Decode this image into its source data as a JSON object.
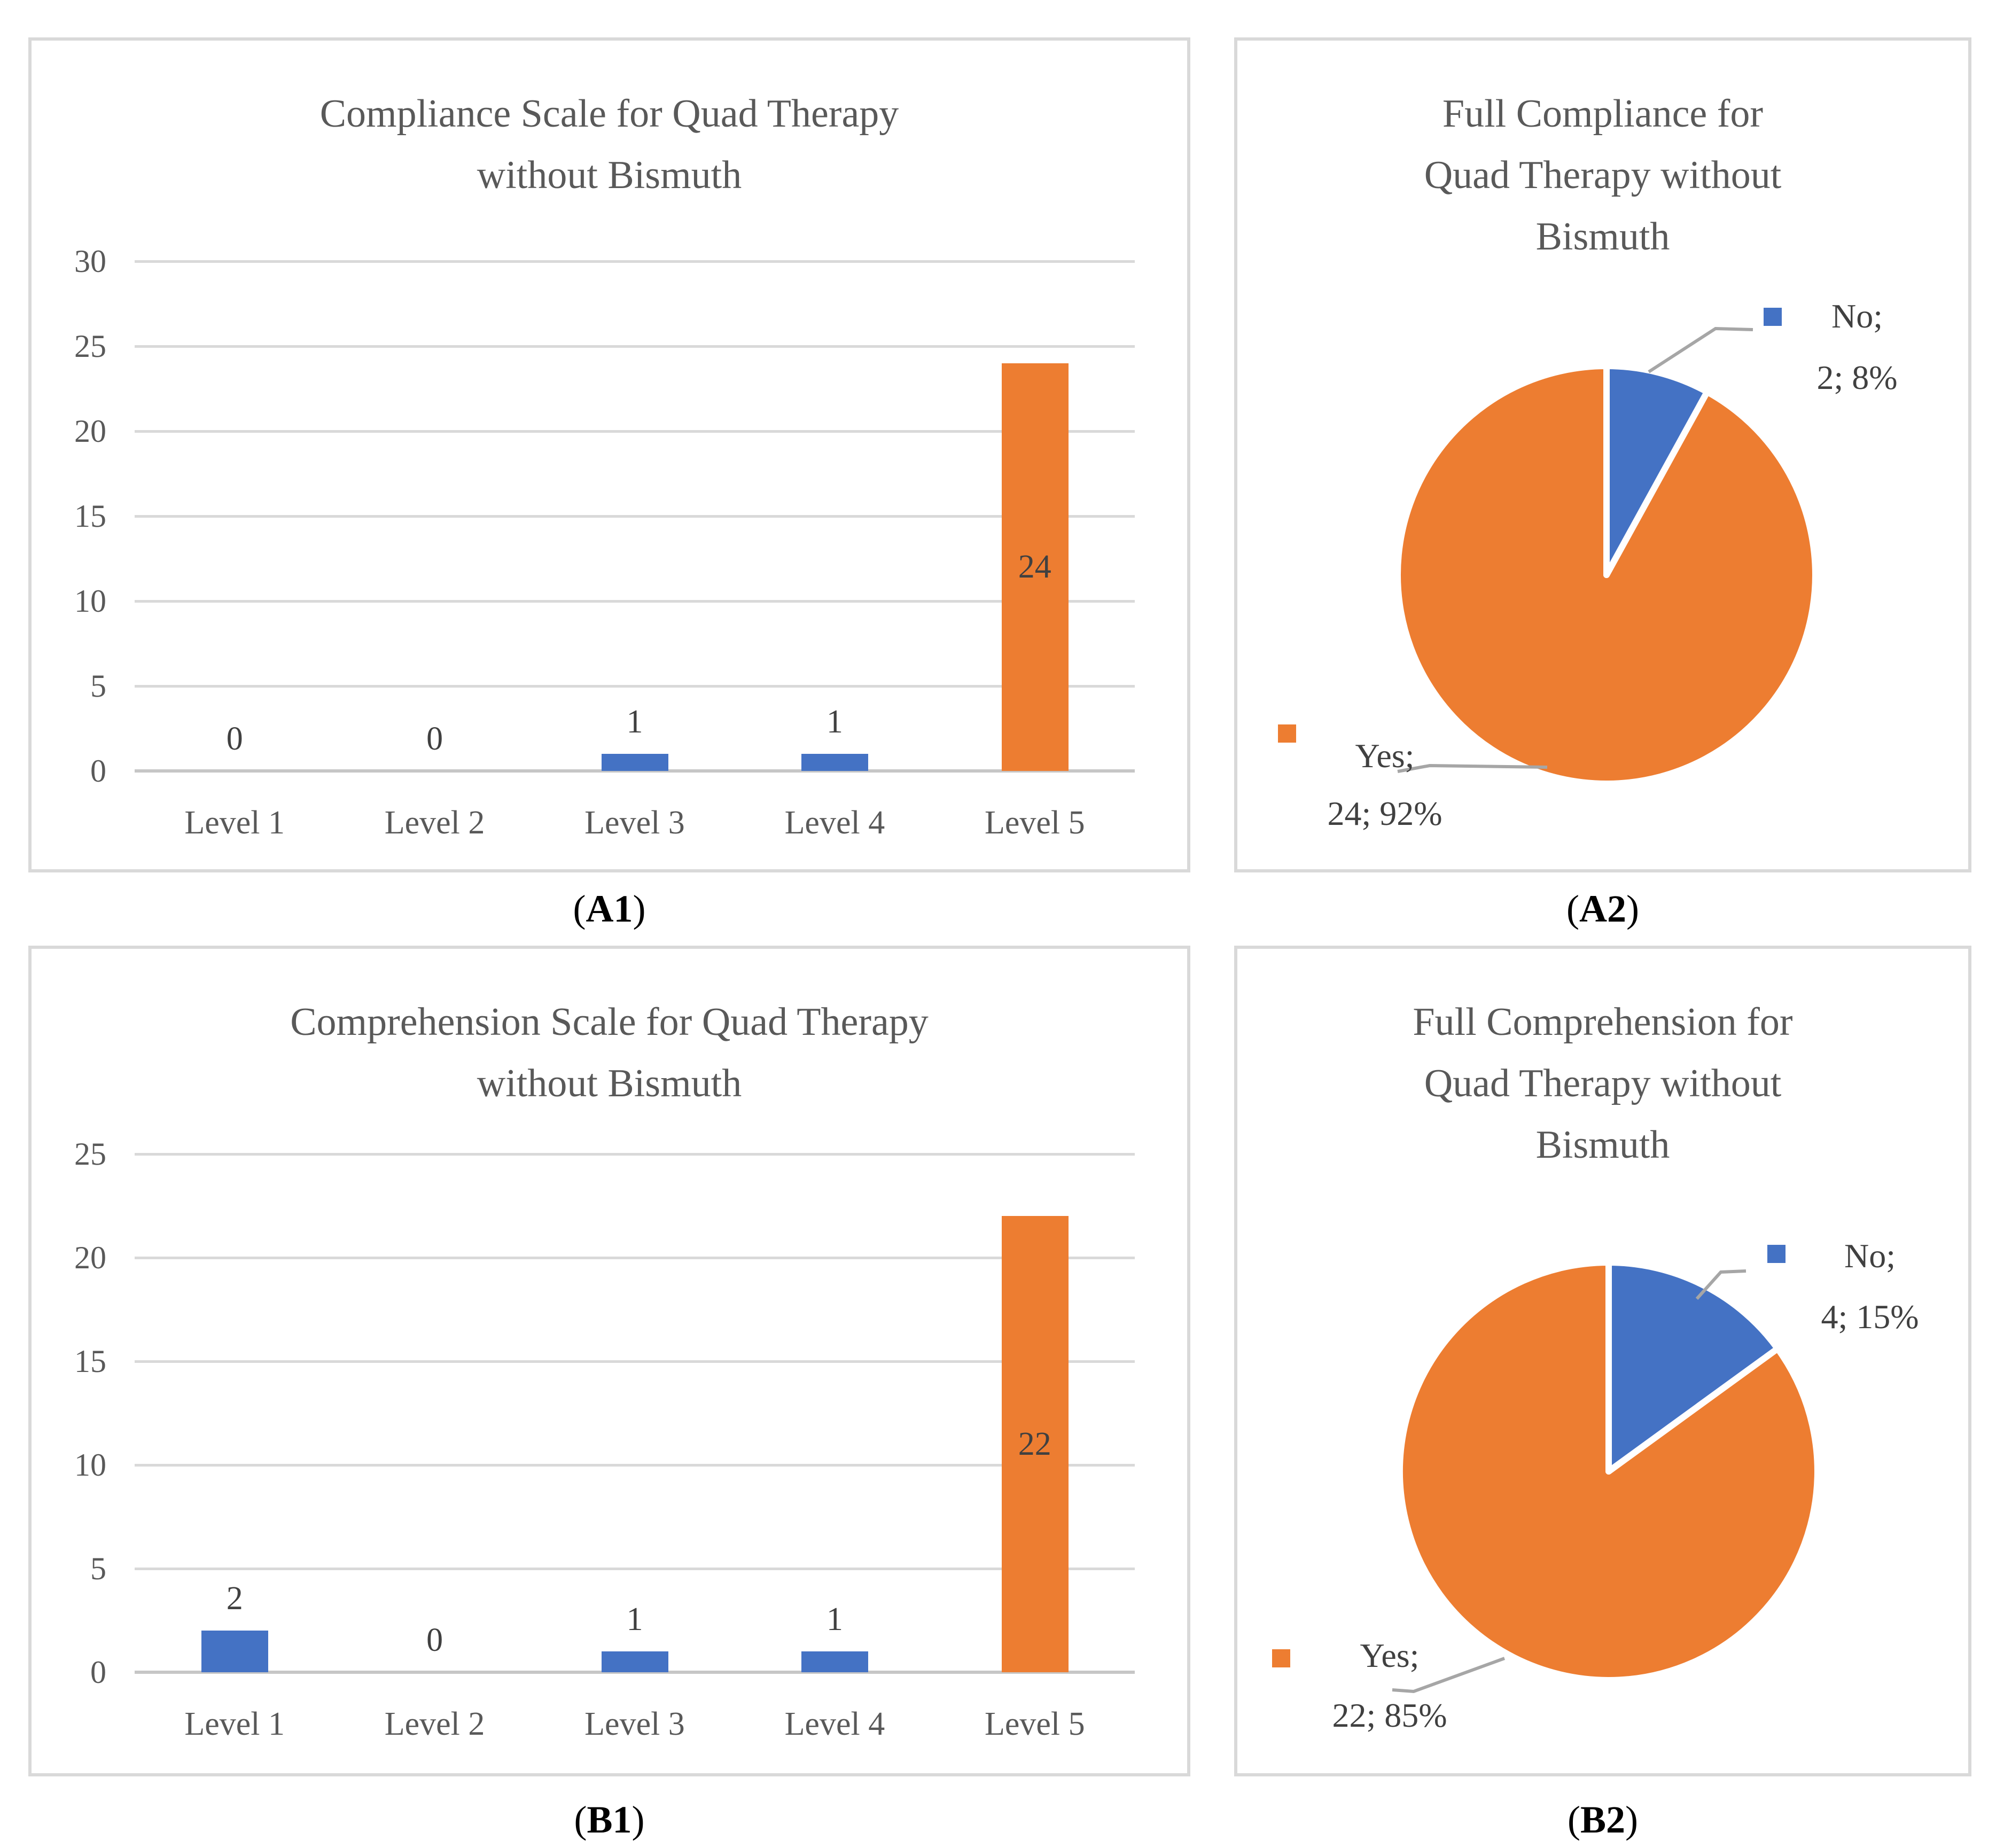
{
  "figure": {
    "captions": [
      {
        "open": "(",
        "label": "A1",
        "close": ")"
      },
      {
        "open": "(",
        "label": "A2",
        "close": ")"
      },
      {
        "open": "(",
        "label": "B1",
        "close": ")"
      },
      {
        "open": "(",
        "label": "B2",
        "close": ")"
      }
    ]
  },
  "colors": {
    "blue": "#4472C4",
    "orange": "#ED7D31",
    "title_text": "#595959",
    "axis_text": "#595959",
    "data_label_text": "#404040",
    "gridline": "#D9D9D9",
    "leader_line": "#A6A6A6",
    "panel_border": "#D9D9D9",
    "slice_gap": "#FFFFFF"
  },
  "chart_data": [
    {
      "id": "A1",
      "type": "bar",
      "title_lines": [
        "Compliance Scale for Quad Therapy",
        "without Bismuth"
      ],
      "categories": [
        "Level 1",
        "Level 2",
        "Level 3",
        "Level 4",
        "Level 5"
      ],
      "values": [
        0,
        0,
        1,
        1,
        24
      ],
      "data_labels": [
        "0",
        "0",
        "1",
        "1",
        "24"
      ],
      "bar_colors": [
        "#4472C4",
        "#4472C4",
        "#4472C4",
        "#4472C4",
        "#ED7D31"
      ],
      "xlabel": "",
      "ylabel": "",
      "ylim": [
        0,
        30
      ],
      "yticks": [
        0,
        5,
        10,
        15,
        20,
        25,
        30
      ],
      "grid": true,
      "legend": false
    },
    {
      "id": "A2",
      "type": "pie",
      "title_lines": [
        "Full Compliance for",
        "Quad Therapy without",
        "Bismuth"
      ],
      "slices": [
        {
          "name": "No",
          "value": 2,
          "pct": 8,
          "color": "#4472C4",
          "label_lines": [
            "No;",
            "2; 8%"
          ]
        },
        {
          "name": "Yes",
          "value": 24,
          "pct": 92,
          "color": "#ED7D31",
          "label_lines": [
            "Yes;",
            "24; 92%"
          ]
        }
      ],
      "start_angle_deg": 0,
      "direction": "clockwise",
      "legend": "callouts-with-leader-lines"
    },
    {
      "id": "B1",
      "type": "bar",
      "title_lines": [
        "Comprehension Scale for Quad Therapy",
        "without Bismuth"
      ],
      "categories": [
        "Level 1",
        "Level 2",
        "Level 3",
        "Level 4",
        "Level 5"
      ],
      "values": [
        2,
        0,
        1,
        1,
        22
      ],
      "data_labels": [
        "2",
        "0",
        "1",
        "1",
        "22"
      ],
      "bar_colors": [
        "#4472C4",
        "#4472C4",
        "#4472C4",
        "#4472C4",
        "#ED7D31"
      ],
      "xlabel": "",
      "ylabel": "",
      "ylim": [
        0,
        25
      ],
      "yticks": [
        0,
        5,
        10,
        15,
        20,
        25
      ],
      "grid": true,
      "legend": false
    },
    {
      "id": "B2",
      "type": "pie",
      "title_lines": [
        "Full Comprehension for",
        "Quad Therapy without",
        "Bismuth"
      ],
      "slices": [
        {
          "name": "No",
          "value": 4,
          "pct": 15,
          "color": "#4472C4",
          "label_lines": [
            "No;",
            "4; 15%"
          ]
        },
        {
          "name": "Yes",
          "value": 22,
          "pct": 85,
          "color": "#ED7D31",
          "label_lines": [
            "Yes;",
            "22; 85%"
          ]
        }
      ],
      "start_angle_deg": 0,
      "direction": "clockwise",
      "legend": "callouts-with-leader-lines"
    }
  ]
}
